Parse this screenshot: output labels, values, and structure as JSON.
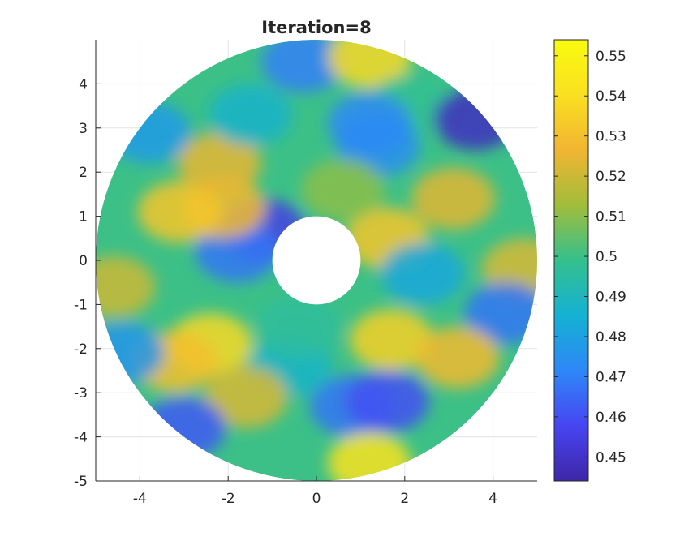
{
  "chart_data": {
    "type": "heatmap",
    "title": "Iteration=8",
    "xlabel": "",
    "ylabel": "",
    "xlim": [
      -5,
      5
    ],
    "ylim": [
      -5,
      5
    ],
    "x_ticks": [
      -4,
      -2,
      0,
      2,
      4
    ],
    "x_tick_labels": [
      "-4",
      "-2",
      "0",
      "2",
      "4"
    ],
    "y_ticks": [
      4,
      3,
      2,
      1,
      0,
      -1,
      -2,
      -3,
      -4,
      -5
    ],
    "y_tick_labels": [
      "4",
      "3",
      "2",
      "1",
      "0",
      "-1",
      "-2",
      "-3",
      "-4",
      "-5"
    ],
    "grid": true,
    "domain": {
      "shape": "annulus",
      "center": [
        0,
        0
      ],
      "outer_radius": 5,
      "inner_radius": 1
    },
    "colorbar": {
      "placement": "right",
      "colormap": "parula",
      "range": [
        0.444,
        0.554
      ],
      "ticks": [
        0.45,
        0.46,
        0.47,
        0.48,
        0.49,
        0.5,
        0.51,
        0.52,
        0.53,
        0.54,
        0.55
      ],
      "tick_labels": [
        "0.45",
        "0.46",
        "0.47",
        "0.48",
        "0.49",
        "0.5",
        "0.51",
        "0.52",
        "0.53",
        "0.54",
        "0.55"
      ],
      "colors": [
        "#3e26a8",
        "#4745f2",
        "#2e87f7",
        "#14b1d3",
        "#34c08d",
        "#a1bd3b",
        "#f1b532",
        "#f9e020",
        "#f9fb0e"
      ]
    },
    "base_value": 0.5,
    "features": [
      {
        "x": -1.2,
        "y": 0.7,
        "value": 0.455
      },
      {
        "x": -1.8,
        "y": 0.2,
        "value": 0.468
      },
      {
        "x": -2.1,
        "y": 1.2,
        "value": 0.528
      },
      {
        "x": -3.1,
        "y": 1.1,
        "value": 0.532
      },
      {
        "x": -2.2,
        "y": 2.2,
        "value": 0.525
      },
      {
        "x": -3.8,
        "y": 2.9,
        "value": 0.478
      },
      {
        "x": -1.5,
        "y": 3.3,
        "value": 0.487
      },
      {
        "x": -0.3,
        "y": 4.5,
        "value": 0.47
      },
      {
        "x": 1.2,
        "y": 4.6,
        "value": 0.538
      },
      {
        "x": 2.1,
        "y": 3.5,
        "value": 0.498
      },
      {
        "x": 1.4,
        "y": 2.6,
        "value": 0.474
      },
      {
        "x": 1.2,
        "y": 3.1,
        "value": 0.472
      },
      {
        "x": 3.6,
        "y": 3.2,
        "value": 0.448
      },
      {
        "x": 3.1,
        "y": 1.4,
        "value": 0.524
      },
      {
        "x": 1.6,
        "y": 0.5,
        "value": 0.532
      },
      {
        "x": 2.4,
        "y": -0.3,
        "value": 0.482
      },
      {
        "x": 4.7,
        "y": -0.2,
        "value": 0.522
      },
      {
        "x": 4.3,
        "y": -1.2,
        "value": 0.468
      },
      {
        "x": 1.7,
        "y": -1.8,
        "value": 0.535
      },
      {
        "x": 3.2,
        "y": -2.2,
        "value": 0.528
      },
      {
        "x": 0.8,
        "y": -3.3,
        "value": 0.468
      },
      {
        "x": 1.6,
        "y": -3.2,
        "value": 0.46
      },
      {
        "x": 1.2,
        "y": -4.6,
        "value": 0.542
      },
      {
        "x": -0.6,
        "y": -2.4,
        "value": 0.488
      },
      {
        "x": -2.4,
        "y": -1.9,
        "value": 0.538
      },
      {
        "x": -3.2,
        "y": -2.3,
        "value": 0.53
      },
      {
        "x": -1.6,
        "y": -3.1,
        "value": 0.522
      },
      {
        "x": -3.0,
        "y": -3.8,
        "value": 0.462
      },
      {
        "x": -4.4,
        "y": -2.1,
        "value": 0.476
      },
      {
        "x": -4.6,
        "y": -0.6,
        "value": 0.52
      },
      {
        "x": -0.4,
        "y": -1.5,
        "value": 0.496
      },
      {
        "x": 0.6,
        "y": 1.6,
        "value": 0.51
      }
    ]
  }
}
